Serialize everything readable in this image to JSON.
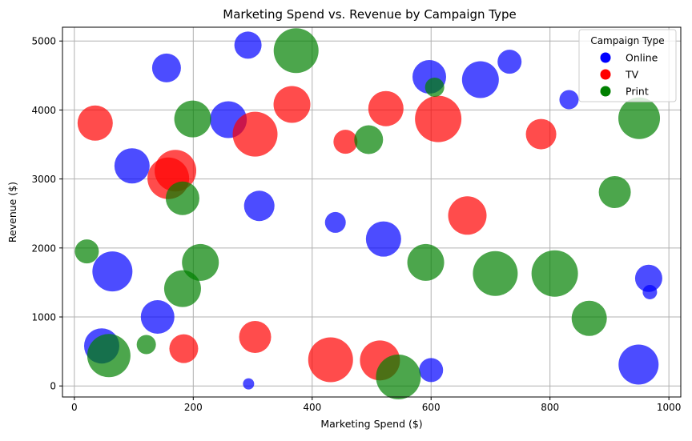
{
  "chart_data": {
    "type": "scatter",
    "title": "Marketing Spend vs. Revenue by Campaign Type",
    "xlabel": "Marketing Spend ($)",
    "ylabel": "Revenue ($)",
    "xlim": [
      -20,
      1020
    ],
    "ylim": [
      -160,
      5200
    ],
    "xticks": [
      0,
      200,
      400,
      600,
      800,
      1000
    ],
    "yticks": [
      0,
      1000,
      2000,
      3000,
      4000,
      5000
    ],
    "xtick_labels": [
      "0",
      "200",
      "400",
      "600",
      "800",
      "1000"
    ],
    "ytick_labels": [
      "0",
      "1000",
      "2000",
      "3000",
      "4000",
      "5000"
    ],
    "grid": true,
    "legend": {
      "title": "Campaign Type",
      "placement": "top-right"
    },
    "series": [
      {
        "name": "Online",
        "color": "#0000ff",
        "points": [
          {
            "x": 292,
            "y": 4940,
            "size": 17
          },
          {
            "x": 155,
            "y": 4610,
            "size": 18
          },
          {
            "x": 597,
            "y": 4480,
            "size": 21
          },
          {
            "x": 683,
            "y": 4440,
            "size": 23
          },
          {
            "x": 732,
            "y": 4700,
            "size": 15
          },
          {
            "x": 832,
            "y": 4150,
            "size": 12
          },
          {
            "x": 259,
            "y": 3860,
            "size": 23
          },
          {
            "x": 97,
            "y": 3190,
            "size": 22
          },
          {
            "x": 311,
            "y": 2610,
            "size": 19
          },
          {
            "x": 439,
            "y": 2370,
            "size": 13
          },
          {
            "x": 520,
            "y": 2130,
            "size": 22
          },
          {
            "x": 64,
            "y": 1660,
            "size": 25
          },
          {
            "x": 966,
            "y": 1560,
            "size": 17
          },
          {
            "x": 968,
            "y": 1360,
            "size": 9
          },
          {
            "x": 140,
            "y": 1000,
            "size": 21
          },
          {
            "x": 46,
            "y": 580,
            "size": 22
          },
          {
            "x": 600,
            "y": 230,
            "size": 15
          },
          {
            "x": 949,
            "y": 310,
            "size": 25
          },
          {
            "x": 293,
            "y": 30,
            "size": 7
          }
        ]
      },
      {
        "name": "TV",
        "color": "#ff0000",
        "points": [
          {
            "x": 35,
            "y": 3810,
            "size": 22
          },
          {
            "x": 366,
            "y": 4080,
            "size": 23
          },
          {
            "x": 524,
            "y": 4020,
            "size": 22
          },
          {
            "x": 612,
            "y": 3870,
            "size": 29
          },
          {
            "x": 304,
            "y": 3650,
            "size": 28
          },
          {
            "x": 456,
            "y": 3540,
            "size": 15
          },
          {
            "x": 785,
            "y": 3650,
            "size": 19
          },
          {
            "x": 170,
            "y": 3120,
            "size": 26
          },
          {
            "x": 158,
            "y": 3010,
            "size": 26
          },
          {
            "x": 661,
            "y": 2470,
            "size": 24
          },
          {
            "x": 304,
            "y": 710,
            "size": 20
          },
          {
            "x": 184,
            "y": 540,
            "size": 18
          },
          {
            "x": 431,
            "y": 380,
            "size": 28
          },
          {
            "x": 514,
            "y": 370,
            "size": 25
          }
        ]
      },
      {
        "name": "Print",
        "color": "#008000",
        "points": [
          {
            "x": 373,
            "y": 4860,
            "size": 28
          },
          {
            "x": 606,
            "y": 4330,
            "size": 12
          },
          {
            "x": 199,
            "y": 3870,
            "size": 23
          },
          {
            "x": 495,
            "y": 3570,
            "size": 18
          },
          {
            "x": 950,
            "y": 3880,
            "size": 26
          },
          {
            "x": 182,
            "y": 2720,
            "size": 21
          },
          {
            "x": 909,
            "y": 2810,
            "size": 20
          },
          {
            "x": 21,
            "y": 1950,
            "size": 15
          },
          {
            "x": 212,
            "y": 1790,
            "size": 23
          },
          {
            "x": 591,
            "y": 1790,
            "size": 23
          },
          {
            "x": 708,
            "y": 1630,
            "size": 28
          },
          {
            "x": 808,
            "y": 1630,
            "size": 29
          },
          {
            "x": 182,
            "y": 1410,
            "size": 23
          },
          {
            "x": 866,
            "y": 980,
            "size": 22
          },
          {
            "x": 121,
            "y": 600,
            "size": 12
          },
          {
            "x": 58,
            "y": 440,
            "size": 27
          },
          {
            "x": 545,
            "y": 130,
            "size": 28
          }
        ]
      }
    ]
  }
}
